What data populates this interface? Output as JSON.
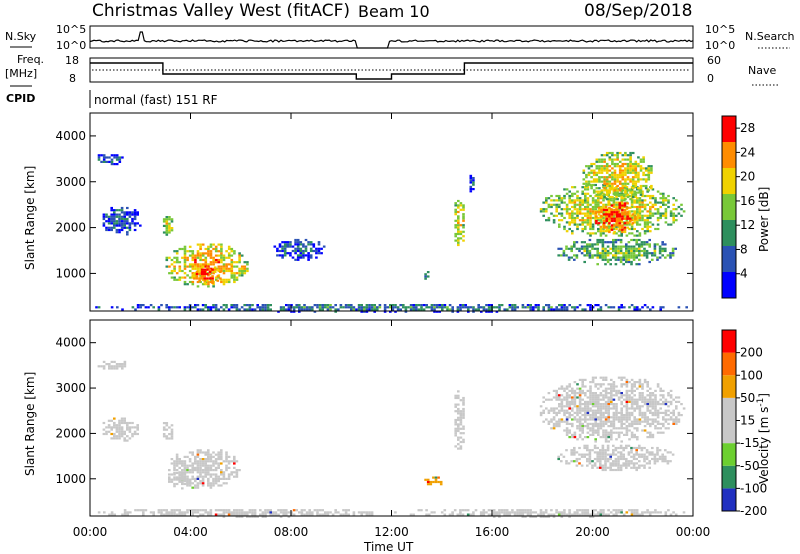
{
  "header": {
    "station": "Christmas Valley West (fitACF)",
    "beam": "Beam 10",
    "date": "08/Sep/2018"
  },
  "top_panels": {
    "nsky_label": "N.Sky",
    "nsky_ticks": [
      "10^5",
      "10^0"
    ],
    "nsearch_label": "N.Search",
    "freq_label_1": "Freq.",
    "freq_label_2": "[MHz]",
    "freq_ticks": [
      "18",
      "8"
    ],
    "nave_label": "Nave",
    "nave_ticks": [
      "60",
      "0"
    ],
    "cpid_label": "CPID",
    "cpid_text": "normal (fast) 151 RF"
  },
  "chart_data": [
    {
      "type": "heatmap",
      "panel": "power",
      "xlabel": "Time UT",
      "ylabel": "Slant Range [km]",
      "xlim": [
        "00:00",
        "24:00"
      ],
      "ylim": [
        180,
        4500
      ],
      "x_ticks": [
        "00:00",
        "04:00",
        "08:00",
        "12:00",
        "16:00",
        "20:00",
        "00:00"
      ],
      "y_ticks": [
        "1000",
        "2000",
        "3000",
        "4000"
      ],
      "colorbar": {
        "label": "Power [dB]",
        "ticks": [
          "4",
          "8",
          "12",
          "16",
          "20",
          "24",
          "28"
        ],
        "range": [
          0,
          30
        ],
        "colors": [
          "#0000ff",
          "#2a52b4",
          "#2e8f5e",
          "#78c838",
          "#f0d200",
          "#ff8c00",
          "#ff0000"
        ]
      },
      "regions": [
        {
          "t0": 0.1,
          "t1": 1.5,
          "r0": 3400,
          "r1": 3650,
          "level": 8
        },
        {
          "t0": 0.4,
          "t1": 2.0,
          "r0": 1850,
          "r1": 2500,
          "level": 8
        },
        {
          "t0": 2.8,
          "t1": 3.3,
          "r0": 1850,
          "r1": 2300,
          "level": 18
        },
        {
          "t0": 2.9,
          "t1": 6.3,
          "r0": 700,
          "r1": 1700,
          "level": 22
        },
        {
          "t0": 4.0,
          "t1": 5.2,
          "r0": 800,
          "r1": 1200,
          "level": 27
        },
        {
          "t0": 7.2,
          "t1": 9.3,
          "r0": 1300,
          "r1": 1800,
          "level": 8
        },
        {
          "t0": 13.2,
          "t1": 13.5,
          "r0": 850,
          "r1": 1100,
          "level": 8
        },
        {
          "t0": 14.4,
          "t1": 14.9,
          "r0": 1600,
          "r1": 2700,
          "level": 20
        },
        {
          "t0": 15.0,
          "t1": 15.3,
          "r0": 2800,
          "r1": 3200,
          "level": 6
        },
        {
          "t0": 17.8,
          "t1": 23.6,
          "r0": 1800,
          "r1": 3000,
          "level": 19
        },
        {
          "t0": 20.0,
          "t1": 21.8,
          "r0": 1900,
          "r1": 2600,
          "level": 27
        },
        {
          "t0": 18.5,
          "t1": 23.4,
          "r0": 1200,
          "r1": 1800,
          "level": 15
        },
        {
          "t0": 19.5,
          "t1": 22.5,
          "r0": 2600,
          "r1": 3700,
          "level": 20
        },
        {
          "t0": 0.0,
          "t1": 24.0,
          "r0": 180,
          "r1": 380,
          "level": 10
        }
      ]
    },
    {
      "type": "heatmap",
      "panel": "velocity",
      "xlabel": "Time UT",
      "ylabel": "Slant Range [km]",
      "xlim": [
        "00:00",
        "24:00"
      ],
      "ylim": [
        180,
        4500
      ],
      "x_ticks": [
        "00:00",
        "04:00",
        "08:00",
        "12:00",
        "16:00",
        "20:00",
        "00:00"
      ],
      "y_ticks": [
        "1000",
        "2000",
        "3000",
        "4000"
      ],
      "colorbar": {
        "label": "Velocity [m s^-1]",
        "ticks": [
          "200",
          "100",
          "50",
          "15",
          "-15",
          "-50",
          "-100",
          "-200"
        ],
        "range": [
          -250,
          250
        ],
        "colors": [
          "#2030c0",
          "#2e8f5e",
          "#6ccf30",
          "#c8c8c8",
          "#c8c8c8",
          "#f0a000",
          "#ff6a00",
          "#ff0000"
        ]
      },
      "regions": [
        {
          "t0": 0.2,
          "t1": 1.5,
          "r0": 3400,
          "r1": 3650,
          "level": 0
        },
        {
          "t0": 0.4,
          "t1": 2.0,
          "r0": 1850,
          "r1": 2400,
          "level": 0
        },
        {
          "t0": 2.8,
          "t1": 3.3,
          "r0": 1850,
          "r1": 2300,
          "level": 0
        },
        {
          "t0": 3.0,
          "t1": 6.0,
          "r0": 800,
          "r1": 1700,
          "level": 0
        },
        {
          "t0": 3.0,
          "t1": 4.0,
          "r0": 800,
          "r1": 1200,
          "level": 30
        },
        {
          "t0": 14.4,
          "t1": 14.9,
          "r0": 1600,
          "r1": 3000,
          "level": 0
        },
        {
          "t0": 13.2,
          "t1": 14.0,
          "r0": 850,
          "r1": 1100,
          "level": 80
        },
        {
          "t0": 17.8,
          "t1": 23.6,
          "r0": 1800,
          "r1": 3300,
          "level": 0
        },
        {
          "t0": 18.5,
          "t1": 23.4,
          "r0": 1200,
          "r1": 1800,
          "level": 0
        },
        {
          "t0": 0.0,
          "t1": 12.0,
          "r0": 180,
          "r1": 380,
          "level": -40
        },
        {
          "t0": 12.0,
          "t1": 24.0,
          "r0": 180,
          "r1": 380,
          "level": 40
        }
      ]
    }
  ]
}
